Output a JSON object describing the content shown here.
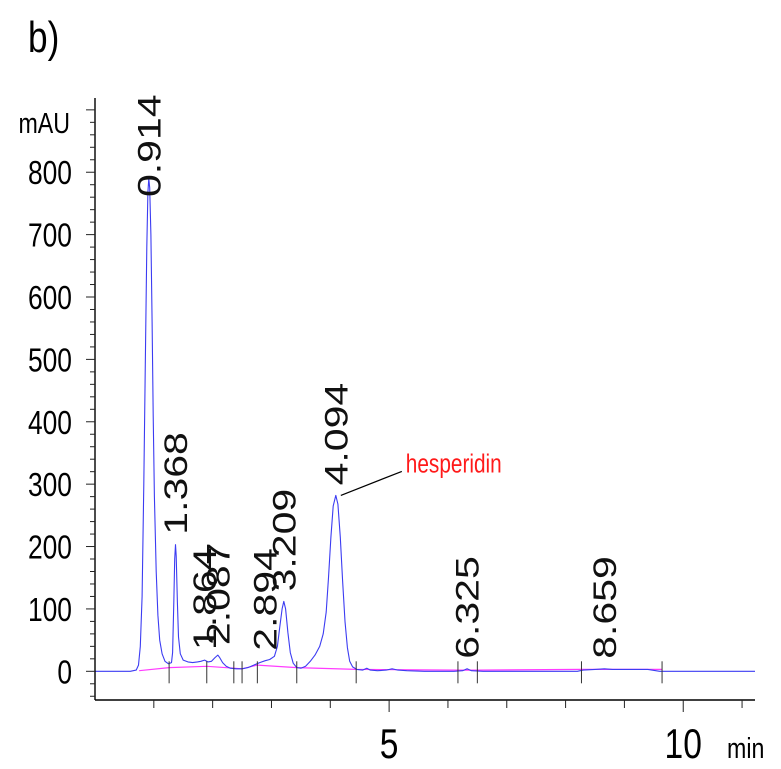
{
  "panel_label": "b)",
  "chart_data": {
    "type": "line",
    "xlabel": "min",
    "ylabel": "mAU",
    "xlim": [
      0,
      11.22
    ],
    "ylim": [
      -46,
      919
    ],
    "x_ticks": [
      5,
      10
    ],
    "y_ticks": [
      0,
      100,
      200,
      300,
      400,
      500,
      600,
      700,
      800
    ],
    "grid": false,
    "series": [
      {
        "color": "#3c3cf2",
        "points": [
          [
            0,
            0
          ],
          [
            0.6,
            0
          ],
          [
            0.7,
            2
          ],
          [
            0.74,
            10
          ],
          [
            0.77,
            40
          ],
          [
            0.8,
            120
          ],
          [
            0.83,
            300
          ],
          [
            0.86,
            530
          ],
          [
            0.88,
            680
          ],
          [
            0.9,
            768
          ],
          [
            0.914,
            790
          ],
          [
            0.93,
            775
          ],
          [
            0.95,
            700
          ],
          [
            0.97,
            560
          ],
          [
            0.99,
            410
          ],
          [
            1.01,
            280
          ],
          [
            1.04,
            160
          ],
          [
            1.07,
            90
          ],
          [
            1.1,
            50
          ],
          [
            1.14,
            28
          ],
          [
            1.19,
            16
          ],
          [
            1.25,
            12
          ],
          [
            1.3,
            14
          ],
          [
            1.32,
            30
          ],
          [
            1.34,
            110
          ],
          [
            1.355,
            180
          ],
          [
            1.368,
            203
          ],
          [
            1.38,
            185
          ],
          [
            1.4,
            110
          ],
          [
            1.42,
            55
          ],
          [
            1.45,
            28
          ],
          [
            1.5,
            18
          ],
          [
            1.58,
            15
          ],
          [
            1.66,
            14
          ],
          [
            1.74,
            15
          ],
          [
            1.8,
            16
          ],
          [
            1.864,
            18
          ],
          [
            1.92,
            15
          ],
          [
            1.98,
            16
          ],
          [
            2.04,
            22
          ],
          [
            2.087,
            26
          ],
          [
            2.12,
            22
          ],
          [
            2.17,
            14
          ],
          [
            2.23,
            8
          ],
          [
            2.3,
            5
          ],
          [
            2.4,
            4
          ],
          [
            2.5,
            4
          ],
          [
            2.6,
            6
          ],
          [
            2.7,
            10
          ],
          [
            2.8,
            14
          ],
          [
            2.894,
            17
          ],
          [
            2.97,
            19
          ],
          [
            3.05,
            24
          ],
          [
            3.1,
            40
          ],
          [
            3.14,
            70
          ],
          [
            3.18,
            100
          ],
          [
            3.209,
            112
          ],
          [
            3.24,
            100
          ],
          [
            3.28,
            62
          ],
          [
            3.32,
            30
          ],
          [
            3.37,
            13
          ],
          [
            3.43,
            6
          ],
          [
            3.5,
            5
          ],
          [
            3.58,
            8
          ],
          [
            3.66,
            16
          ],
          [
            3.74,
            26
          ],
          [
            3.82,
            40
          ],
          [
            3.88,
            60
          ],
          [
            3.93,
            95
          ],
          [
            3.97,
            150
          ],
          [
            4.01,
            215
          ],
          [
            4.05,
            265
          ],
          [
            4.094,
            282
          ],
          [
            4.13,
            268
          ],
          [
            4.17,
            215
          ],
          [
            4.21,
            145
          ],
          [
            4.25,
            80
          ],
          [
            4.29,
            38
          ],
          [
            4.33,
            16
          ],
          [
            4.38,
            7
          ],
          [
            4.45,
            3
          ],
          [
            4.55,
            2
          ],
          [
            4.62,
            5
          ],
          [
            4.68,
            2
          ],
          [
            4.8,
            1
          ],
          [
            4.95,
            2
          ],
          [
            5.05,
            4
          ],
          [
            5.15,
            2
          ],
          [
            5.3,
            1
          ],
          [
            5.6,
            0
          ],
          [
            6.1,
            0
          ],
          [
            6.25,
            1
          ],
          [
            6.325,
            4
          ],
          [
            6.4,
            1
          ],
          [
            6.6,
            0
          ],
          [
            8.2,
            0
          ],
          [
            8.3,
            2
          ],
          [
            8.5,
            3
          ],
          [
            8.659,
            4
          ],
          [
            8.8,
            3
          ],
          [
            9.4,
            3
          ],
          [
            9.6,
            0
          ],
          [
            11.22,
            0
          ]
        ]
      },
      {
        "color": "#ff3cff",
        "points": [
          [
            0.75,
            1
          ],
          [
            1.26,
            6
          ],
          [
            1.9,
            8
          ],
          [
            2.36,
            5
          ],
          [
            2.5,
            4
          ],
          [
            2.76,
            10
          ],
          [
            3.43,
            6
          ],
          [
            4.44,
            3
          ],
          [
            6.17,
            2
          ],
          [
            6.5,
            2
          ],
          [
            8.27,
            3
          ],
          [
            9.64,
            3
          ]
        ]
      }
    ],
    "event_marks": [
      1.26,
      1.9,
      2.36,
      2.5,
      2.76,
      3.43,
      4.44,
      6.17,
      6.5,
      8.27,
      9.64
    ],
    "peaks": [
      {
        "label": "0.914"
      },
      {
        "label": "1.368"
      },
      {
        "label": "1.864"
      },
      {
        "label": "2.087"
      },
      {
        "label": "2.894"
      },
      {
        "label": "3.209"
      },
      {
        "label": "4.094",
        "annotation": "hesperidin",
        "annotation_color": "#ff1a1a"
      },
      {
        "label": "6.325"
      },
      {
        "label": "8.659"
      }
    ]
  }
}
